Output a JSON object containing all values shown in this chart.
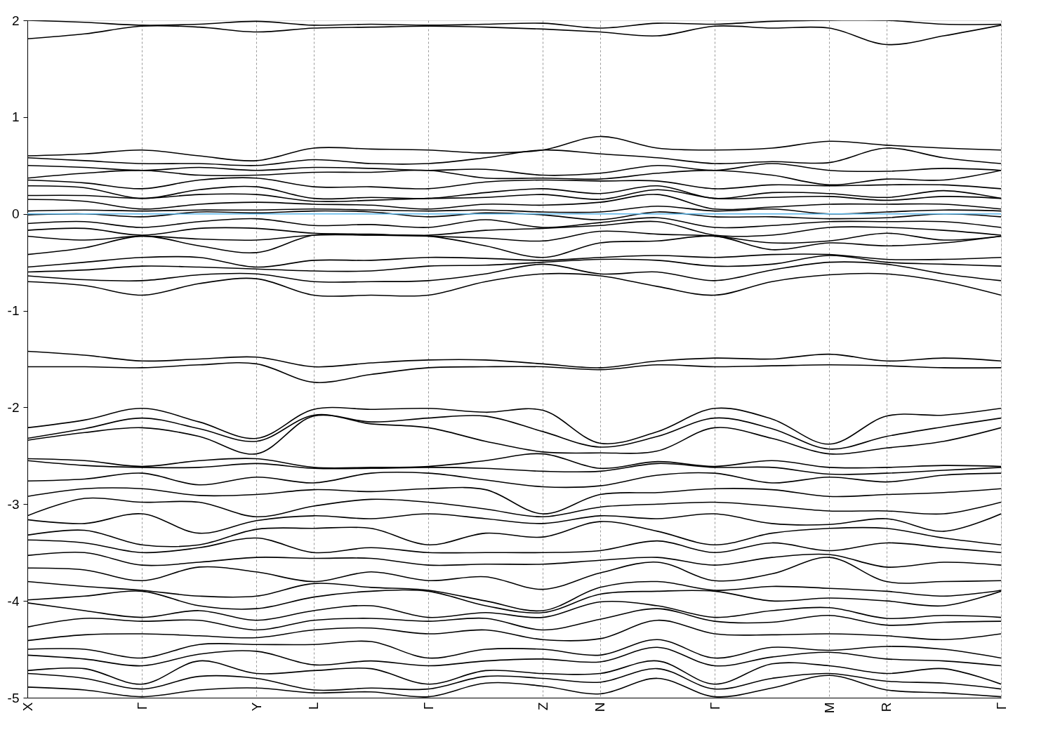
{
  "chart_data": {
    "type": "line",
    "categories": [
      "X",
      null,
      "Γ",
      null,
      "Y",
      "L",
      null,
      "Γ",
      null,
      "Z",
      "N",
      null,
      "Γ",
      null,
      "M",
      "R",
      null,
      "Γ"
    ],
    "ylim": [
      -5,
      2
    ],
    "yticks": [
      -5,
      -4,
      -3,
      -2,
      -1,
      0,
      1,
      2
    ],
    "grid": "x",
    "ref_lines": [
      {
        "axis": "y",
        "value": 0,
        "color": "#56b4e9"
      }
    ],
    "series": [
      {
        "color": "#000000",
        "values": [
          1.81,
          1.86,
          1.94,
          1.93,
          1.88,
          1.92,
          1.93,
          1.94,
          1.93,
          1.91,
          1.88,
          1.84,
          1.94,
          1.92,
          1.92,
          1.75,
          1.84,
          1.95
        ]
      },
      {
        "color": "#000000",
        "values": [
          2.0,
          1.98,
          1.95,
          1.96,
          1.99,
          1.95,
          1.96,
          1.95,
          1.96,
          1.97,
          1.92,
          1.97,
          1.96,
          1.99,
          2.0,
          2.0,
          1.96,
          1.96
        ]
      },
      {
        "color": "#000000",
        "values": [
          0.6,
          0.62,
          0.66,
          0.6,
          0.55,
          0.68,
          0.67,
          0.66,
          0.63,
          0.66,
          0.8,
          0.68,
          0.66,
          0.68,
          0.75,
          0.71,
          0.68,
          0.66
        ]
      },
      {
        "color": "#000000",
        "values": [
          0.58,
          0.55,
          0.52,
          0.52,
          0.5,
          0.56,
          0.52,
          0.52,
          0.58,
          0.66,
          0.62,
          0.58,
          0.52,
          0.54,
          0.53,
          0.68,
          0.58,
          0.52
        ]
      },
      {
        "color": "#000000",
        "values": [
          0.5,
          0.48,
          0.45,
          0.48,
          0.45,
          0.48,
          0.47,
          0.45,
          0.46,
          0.4,
          0.42,
          0.5,
          0.45,
          0.52,
          0.45,
          0.44,
          0.47,
          0.45
        ]
      },
      {
        "color": "#000000",
        "values": [
          0.37,
          0.42,
          0.45,
          0.4,
          0.4,
          0.43,
          0.43,
          0.45,
          0.37,
          0.37,
          0.36,
          0.42,
          0.45,
          0.4,
          0.3,
          0.36,
          0.35,
          0.45
        ]
      },
      {
        "color": "#000000",
        "values": [
          0.35,
          0.32,
          0.26,
          0.35,
          0.37,
          0.28,
          0.28,
          0.26,
          0.33,
          0.35,
          0.34,
          0.34,
          0.26,
          0.3,
          0.29,
          0.3,
          0.3,
          0.26
        ]
      },
      {
        "color": "#000000",
        "values": [
          0.29,
          0.27,
          0.16,
          0.25,
          0.28,
          0.16,
          0.17,
          0.16,
          0.22,
          0.26,
          0.21,
          0.29,
          0.16,
          0.22,
          0.21,
          0.17,
          0.24,
          0.16
        ]
      },
      {
        "color": "#000000",
        "values": [
          0.19,
          0.19,
          0.16,
          0.2,
          0.2,
          0.13,
          0.14,
          0.16,
          0.17,
          0.2,
          0.15,
          0.25,
          0.16,
          0.17,
          0.18,
          0.14,
          0.18,
          0.16
        ]
      },
      {
        "color": "#000000",
        "values": [
          0.15,
          0.13,
          0.05,
          0.1,
          0.12,
          0.1,
          0.09,
          0.05,
          0.1,
          0.09,
          0.12,
          0.2,
          0.05,
          0.07,
          0.1,
          0.1,
          0.1,
          0.05
        ]
      },
      {
        "color": "#000000",
        "values": [
          0.03,
          0.04,
          0.03,
          0.04,
          0.04,
          0.05,
          0.04,
          0.03,
          0.04,
          0.02,
          0.02,
          0.08,
          0.03,
          0.05,
          0.0,
          0.02,
          0.04,
          0.03
        ]
      },
      {
        "color": "#000000",
        "values": [
          -0.01,
          0.0,
          -0.03,
          0.02,
          0.01,
          0.03,
          0.02,
          -0.03,
          0.01,
          -0.01,
          -0.06,
          0.02,
          -0.03,
          -0.03,
          -0.05,
          -0.04,
          0.0,
          -0.03
        ]
      },
      {
        "color": "#000000",
        "values": [
          -0.1,
          -0.08,
          -0.14,
          -0.08,
          -0.05,
          -0.12,
          -0.11,
          -0.14,
          -0.06,
          -0.14,
          -0.09,
          -0.04,
          -0.14,
          -0.12,
          -0.08,
          -0.08,
          -0.08,
          -0.14
        ]
      },
      {
        "color": "#000000",
        "values": [
          -0.17,
          -0.15,
          -0.22,
          -0.15,
          -0.15,
          -0.2,
          -0.21,
          -0.22,
          -0.17,
          -0.15,
          -0.12,
          -0.08,
          -0.22,
          -0.22,
          -0.14,
          -0.14,
          -0.17,
          -0.22
        ]
      },
      {
        "color": "#000000",
        "values": [
          -0.23,
          -0.27,
          -0.23,
          -0.26,
          -0.27,
          -0.22,
          -0.22,
          -0.23,
          -0.25,
          -0.28,
          -0.18,
          -0.21,
          -0.23,
          -0.3,
          -0.28,
          -0.2,
          -0.27,
          -0.23
        ]
      },
      {
        "color": "#000000",
        "values": [
          -0.42,
          -0.35,
          -0.23,
          -0.33,
          -0.4,
          -0.22,
          -0.22,
          -0.23,
          -0.33,
          -0.45,
          -0.3,
          -0.28,
          -0.23,
          -0.37,
          -0.3,
          -0.33,
          -0.3,
          -0.23
        ]
      },
      {
        "color": "#000000",
        "values": [
          -0.55,
          -0.5,
          -0.45,
          -0.45,
          -0.55,
          -0.48,
          -0.48,
          -0.45,
          -0.46,
          -0.48,
          -0.45,
          -0.43,
          -0.45,
          -0.42,
          -0.42,
          -0.47,
          -0.47,
          -0.45
        ]
      },
      {
        "color": "#000000",
        "values": [
          -0.6,
          -0.58,
          -0.54,
          -0.55,
          -0.57,
          -0.59,
          -0.59,
          -0.54,
          -0.53,
          -0.5,
          -0.47,
          -0.48,
          -0.54,
          -0.52,
          -0.43,
          -0.5,
          -0.52,
          -0.54
        ]
      },
      {
        "color": "#000000",
        "values": [
          -0.64,
          -0.68,
          -0.69,
          -0.63,
          -0.62,
          -0.7,
          -0.7,
          -0.69,
          -0.62,
          -0.52,
          -0.62,
          -0.6,
          -0.69,
          -0.58,
          -0.5,
          -0.52,
          -0.62,
          -0.69
        ]
      },
      {
        "color": "#000000",
        "values": [
          -0.7,
          -0.74,
          -0.84,
          -0.72,
          -0.67,
          -0.84,
          -0.84,
          -0.84,
          -0.7,
          -0.62,
          -0.64,
          -0.75,
          -0.84,
          -0.7,
          -0.63,
          -0.62,
          -0.7,
          -0.84
        ]
      },
      {
        "color": "#000000",
        "values": [
          -1.42,
          -1.46,
          -1.52,
          -1.5,
          -1.48,
          -1.58,
          -1.54,
          -1.51,
          -1.51,
          -1.55,
          -1.59,
          -1.52,
          -1.49,
          -1.5,
          -1.45,
          -1.52,
          -1.49,
          -1.52
        ]
      },
      {
        "color": "#000000",
        "values": [
          -1.58,
          -1.58,
          -1.59,
          -1.56,
          -1.55,
          -1.74,
          -1.66,
          -1.59,
          -1.58,
          -1.58,
          -1.61,
          -1.56,
          -1.58,
          -1.57,
          -1.56,
          -1.57,
          -1.59,
          -1.59
        ]
      },
      {
        "color": "#000000",
        "values": [
          -2.21,
          -2.13,
          -2.01,
          -2.15,
          -2.32,
          -2.02,
          -2.02,
          -2.01,
          -2.05,
          -2.03,
          -2.37,
          -2.25,
          -2.01,
          -2.12,
          -2.38,
          -2.09,
          -2.08,
          -2.01
        ]
      },
      {
        "color": "#000000",
        "values": [
          -2.32,
          -2.22,
          -2.11,
          -2.22,
          -2.35,
          -2.08,
          -2.15,
          -2.11,
          -2.09,
          -2.25,
          -2.41,
          -2.3,
          -2.11,
          -2.22,
          -2.43,
          -2.3,
          -2.2,
          -2.11
        ]
      },
      {
        "color": "#000000",
        "values": [
          -2.34,
          -2.26,
          -2.21,
          -2.3,
          -2.48,
          -2.09,
          -2.17,
          -2.21,
          -2.35,
          -2.46,
          -2.47,
          -2.45,
          -2.21,
          -2.32,
          -2.48,
          -2.42,
          -2.35,
          -2.21
        ]
      },
      {
        "color": "#000000",
        "values": [
          -2.53,
          -2.55,
          -2.61,
          -2.55,
          -2.53,
          -2.62,
          -2.62,
          -2.61,
          -2.55,
          -2.48,
          -2.63,
          -2.56,
          -2.61,
          -2.55,
          -2.62,
          -2.62,
          -2.6,
          -2.61
        ]
      },
      {
        "color": "#000000",
        "values": [
          -2.55,
          -2.6,
          -2.62,
          -2.62,
          -2.58,
          -2.63,
          -2.63,
          -2.62,
          -2.63,
          -2.66,
          -2.66,
          -2.58,
          -2.62,
          -2.62,
          -2.69,
          -2.68,
          -2.65,
          -2.62
        ]
      },
      {
        "color": "#000000",
        "values": [
          -2.76,
          -2.74,
          -2.68,
          -2.8,
          -2.72,
          -2.78,
          -2.68,
          -2.68,
          -2.75,
          -2.82,
          -2.81,
          -2.7,
          -2.68,
          -2.78,
          -2.72,
          -2.77,
          -2.7,
          -2.68
        ]
      },
      {
        "color": "#000000",
        "values": [
          -2.92,
          -2.84,
          -2.84,
          -2.91,
          -2.9,
          -2.85,
          -2.87,
          -2.84,
          -2.85,
          -3.1,
          -2.9,
          -2.88,
          -2.84,
          -2.85,
          -2.92,
          -2.9,
          -2.88,
          -2.84
        ]
      },
      {
        "color": "#000000",
        "values": [
          -3.12,
          -2.94,
          -2.98,
          -2.98,
          -3.13,
          -3.02,
          -2.95,
          -2.98,
          -3.05,
          -3.13,
          -3.03,
          -3.0,
          -2.98,
          -3.02,
          -3.07,
          -3.07,
          -3.1,
          -2.98
        ]
      },
      {
        "color": "#000000",
        "values": [
          -3.16,
          -3.2,
          -3.1,
          -3.3,
          -3.17,
          -3.12,
          -3.15,
          -3.1,
          -3.15,
          -3.2,
          -3.12,
          -3.15,
          -3.1,
          -3.2,
          -3.21,
          -3.15,
          -3.28,
          -3.1
        ]
      },
      {
        "color": "#000000",
        "values": [
          -3.32,
          -3.27,
          -3.42,
          -3.42,
          -3.26,
          -3.25,
          -3.25,
          -3.42,
          -3.3,
          -3.34,
          -3.18,
          -3.28,
          -3.42,
          -3.3,
          -3.25,
          -3.25,
          -3.35,
          -3.42
        ]
      },
      {
        "color": "#000000",
        "values": [
          -3.37,
          -3.4,
          -3.5,
          -3.45,
          -3.35,
          -3.5,
          -3.45,
          -3.5,
          -3.5,
          -3.5,
          -3.48,
          -3.38,
          -3.5,
          -3.4,
          -3.48,
          -3.4,
          -3.45,
          -3.5
        ]
      },
      {
        "color": "#000000",
        "values": [
          -3.53,
          -3.5,
          -3.63,
          -3.6,
          -3.55,
          -3.56,
          -3.56,
          -3.63,
          -3.62,
          -3.62,
          -3.58,
          -3.55,
          -3.63,
          -3.55,
          -3.52,
          -3.65,
          -3.6,
          -3.63
        ]
      },
      {
        "color": "#000000",
        "values": [
          -3.66,
          -3.68,
          -3.79,
          -3.65,
          -3.7,
          -3.8,
          -3.7,
          -3.79,
          -3.75,
          -3.88,
          -3.71,
          -3.6,
          -3.79,
          -3.72,
          -3.55,
          -3.8,
          -3.8,
          -3.79
        ]
      },
      {
        "color": "#000000",
        "values": [
          -3.8,
          -3.85,
          -3.89,
          -3.95,
          -3.95,
          -3.82,
          -3.86,
          -3.89,
          -4.0,
          -4.1,
          -3.86,
          -3.8,
          -3.89,
          -3.85,
          -3.87,
          -3.9,
          -3.95,
          -3.89
        ]
      },
      {
        "color": "#000000",
        "values": [
          -3.99,
          -3.95,
          -3.9,
          -4.05,
          -4.08,
          -3.96,
          -3.9,
          -3.9,
          -4.05,
          -4.12,
          -3.93,
          -3.9,
          -3.9,
          -4.0,
          -3.97,
          -4.0,
          -4.05,
          -3.9
        ]
      },
      {
        "color": "#000000",
        "values": [
          -4.02,
          -4.1,
          -4.17,
          -4.1,
          -4.2,
          -4.1,
          -4.05,
          -4.17,
          -4.12,
          -4.17,
          -4.01,
          -4.05,
          -4.17,
          -4.1,
          -4.07,
          -4.18,
          -4.15,
          -4.17
        ]
      },
      {
        "color": "#000000",
        "values": [
          -4.27,
          -4.18,
          -4.21,
          -4.2,
          -4.3,
          -4.2,
          -4.18,
          -4.21,
          -4.18,
          -4.3,
          -4.19,
          -4.08,
          -4.21,
          -4.22,
          -4.15,
          -4.25,
          -4.22,
          -4.21
        ]
      },
      {
        "color": "#000000",
        "values": [
          -4.41,
          -4.35,
          -4.34,
          -4.36,
          -4.38,
          -4.3,
          -4.28,
          -4.34,
          -4.3,
          -4.4,
          -4.39,
          -4.2,
          -4.34,
          -4.35,
          -4.34,
          -4.36,
          -4.4,
          -4.34
        ]
      },
      {
        "color": "#000000",
        "values": [
          -4.5,
          -4.5,
          -4.59,
          -4.45,
          -4.45,
          -4.45,
          -4.42,
          -4.59,
          -4.5,
          -4.5,
          -4.56,
          -4.4,
          -4.59,
          -4.48,
          -4.51,
          -4.47,
          -4.5,
          -4.59
        ]
      },
      {
        "color": "#000000",
        "values": [
          -4.56,
          -4.6,
          -4.67,
          -4.55,
          -4.52,
          -4.66,
          -4.62,
          -4.67,
          -4.62,
          -4.6,
          -4.63,
          -4.48,
          -4.67,
          -4.58,
          -4.53,
          -4.6,
          -4.62,
          -4.67
        ]
      },
      {
        "color": "#000000",
        "values": [
          -4.72,
          -4.7,
          -4.86,
          -4.62,
          -4.75,
          -4.72,
          -4.7,
          -4.86,
          -4.72,
          -4.75,
          -4.75,
          -4.62,
          -4.86,
          -4.65,
          -4.67,
          -4.75,
          -4.7,
          -4.86
        ]
      },
      {
        "color": "#000000",
        "values": [
          -4.75,
          -4.8,
          -4.91,
          -4.78,
          -4.8,
          -4.92,
          -4.9,
          -4.91,
          -4.78,
          -4.8,
          -4.84,
          -4.7,
          -4.91,
          -4.8,
          -4.75,
          -4.83,
          -4.85,
          -4.91
        ]
      },
      {
        "color": "#000000",
        "values": [
          -4.89,
          -4.92,
          -4.99,
          -4.92,
          -4.9,
          -4.95,
          -4.94,
          -4.99,
          -4.85,
          -4.88,
          -4.96,
          -4.8,
          -4.99,
          -4.9,
          -4.77,
          -4.92,
          -4.95,
          -4.99
        ]
      }
    ]
  }
}
